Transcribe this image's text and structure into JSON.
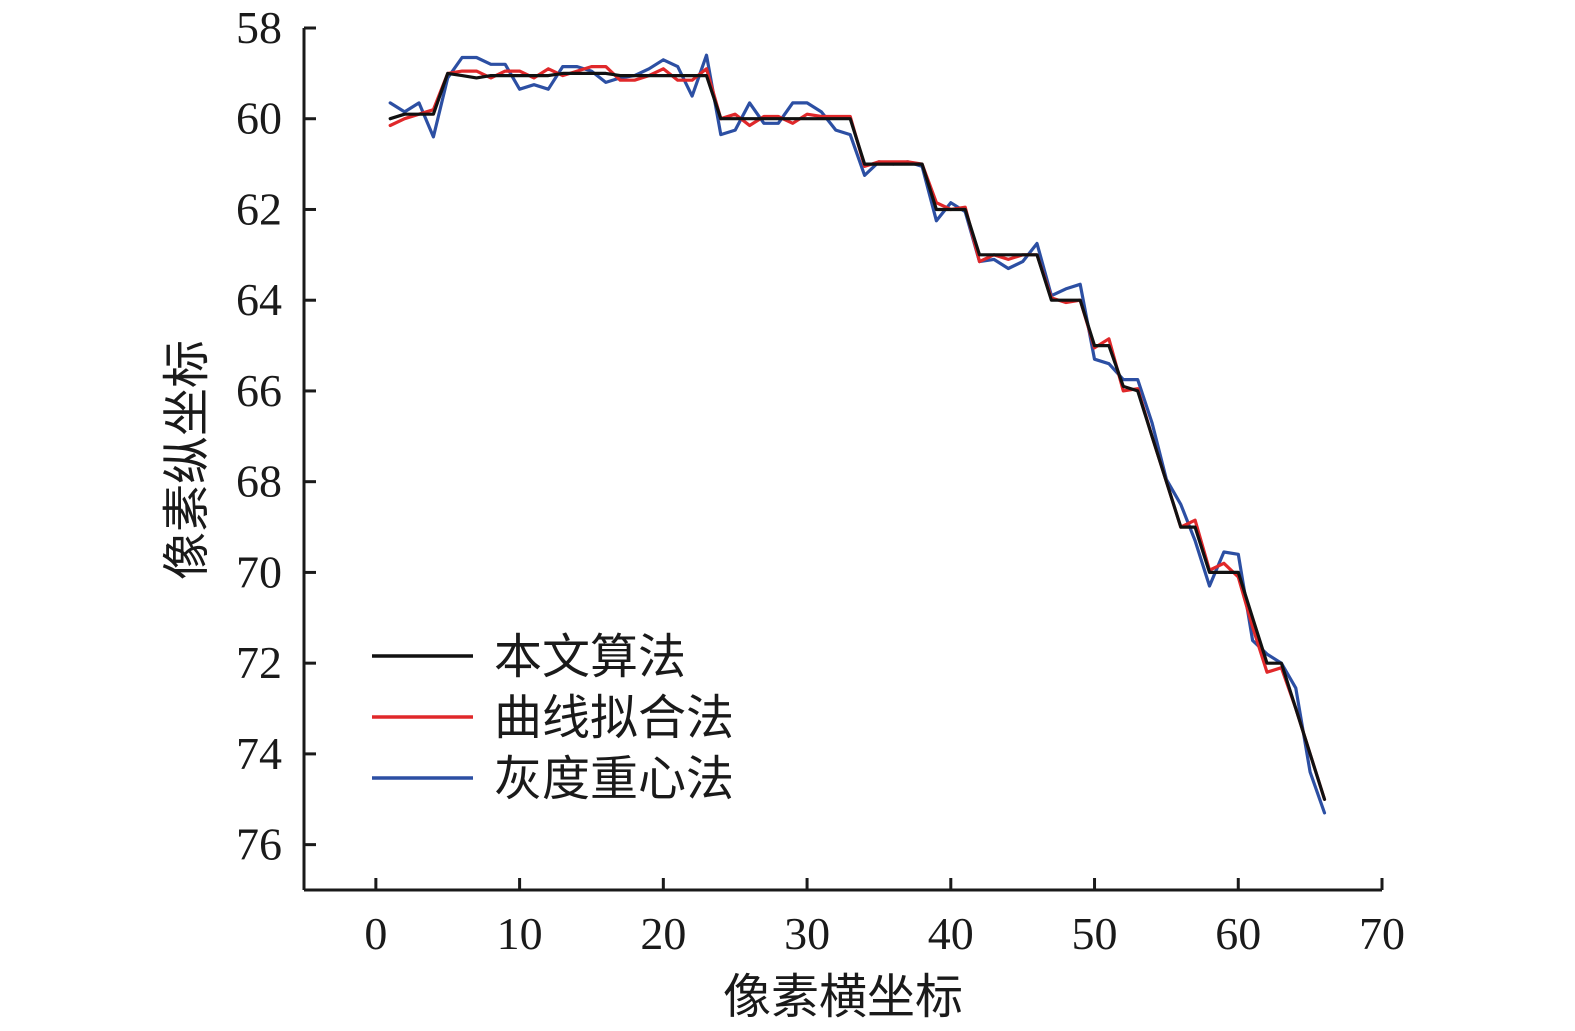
{
  "chart_data": {
    "type": "line",
    "title": "",
    "xlabel": "像素横坐标",
    "ylabel": "像素纵坐标",
    "xlim": [
      -5,
      70
    ],
    "ylim": [
      58,
      77
    ],
    "y_inverted": true,
    "xticks": [
      0,
      10,
      20,
      30,
      40,
      50,
      60,
      70
    ],
    "yticks": [
      58,
      60,
      62,
      64,
      66,
      68,
      70,
      72,
      74,
      76
    ],
    "grid": false,
    "legend_position": "bottom-left",
    "x": [
      1,
      2,
      3,
      4,
      5,
      6,
      7,
      8,
      9,
      10,
      11,
      12,
      13,
      14,
      15,
      16,
      17,
      18,
      19,
      20,
      21,
      22,
      23,
      24,
      25,
      26,
      27,
      28,
      29,
      30,
      31,
      32,
      33,
      34,
      35,
      36,
      37,
      38,
      39,
      40,
      41,
      42,
      43,
      44,
      45,
      46,
      47,
      48,
      49,
      50,
      51,
      52,
      53,
      54,
      55,
      56,
      57,
      58,
      59,
      60,
      61,
      62,
      63,
      64,
      65,
      66
    ],
    "series": [
      {
        "name": "本文算法",
        "color": "#111111",
        "values": [
          60.0,
          59.9,
          59.9,
          59.9,
          59.0,
          59.05,
          59.1,
          59.05,
          59.05,
          59.05,
          59.05,
          59.05,
          59.0,
          59.0,
          59.0,
          59.0,
          59.05,
          59.05,
          59.05,
          59.05,
          59.05,
          59.05,
          59.05,
          60.0,
          60.0,
          60.0,
          60.0,
          60.0,
          60.0,
          60.0,
          60.0,
          60.0,
          60.0,
          61.0,
          61.0,
          61.0,
          61.0,
          61.0,
          62.0,
          62.0,
          62.0,
          63.0,
          63.0,
          63.0,
          63.0,
          63.0,
          64.0,
          64.0,
          64.0,
          65.0,
          65.0,
          65.9,
          66.0,
          67.0,
          68.0,
          69.0,
          69.0,
          70.0,
          70.0,
          70.0,
          71.0,
          72.0,
          72.0,
          73.0,
          74.0,
          75.0
        ]
      },
      {
        "name": "曲线拟合法",
        "color": "#e0282a",
        "values": [
          60.15,
          60.0,
          59.9,
          59.8,
          59.0,
          58.95,
          58.95,
          59.1,
          58.95,
          58.95,
          59.1,
          58.9,
          59.05,
          58.95,
          58.85,
          58.85,
          59.15,
          59.15,
          59.05,
          58.9,
          59.15,
          59.15,
          58.9,
          60.0,
          59.9,
          60.15,
          59.95,
          59.95,
          60.1,
          59.9,
          59.95,
          59.95,
          59.95,
          61.05,
          60.95,
          60.95,
          60.95,
          61.0,
          61.85,
          62.0,
          61.95,
          63.15,
          63.0,
          63.1,
          63.0,
          63.0,
          63.95,
          64.05,
          64.0,
          65.05,
          64.85,
          66.0,
          65.95,
          67.0,
          68.0,
          69.0,
          68.85,
          69.95,
          69.8,
          70.1,
          71.2,
          72.2,
          72.1,
          73.0,
          74.0,
          75.0
        ]
      },
      {
        "name": "灰度重心法",
        "color": "#2c4fa3",
        "values": [
          59.65,
          59.85,
          59.65,
          60.4,
          59.1,
          58.65,
          58.65,
          58.8,
          58.8,
          59.35,
          59.25,
          59.35,
          58.85,
          58.85,
          58.95,
          59.2,
          59.1,
          59.05,
          58.9,
          58.7,
          58.85,
          59.5,
          58.6,
          60.35,
          60.25,
          59.65,
          60.1,
          60.1,
          59.65,
          59.65,
          59.85,
          60.25,
          60.35,
          61.25,
          60.95,
          61.0,
          60.95,
          61.05,
          62.25,
          61.85,
          62.05,
          63.15,
          63.1,
          63.3,
          63.15,
          62.75,
          63.9,
          63.75,
          63.65,
          65.3,
          65.4,
          65.75,
          65.75,
          66.7,
          67.95,
          68.5,
          69.3,
          70.3,
          69.55,
          69.6,
          71.5,
          71.8,
          72.0,
          72.55,
          74.4,
          75.3
        ]
      }
    ]
  }
}
